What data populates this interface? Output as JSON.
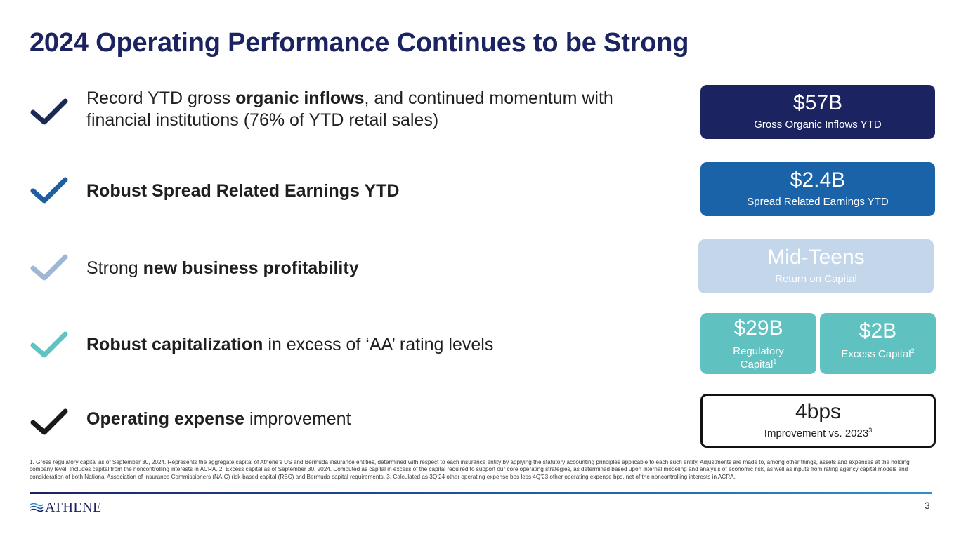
{
  "title": "2024 Operating Performance Continues to be Strong",
  "bullets": [
    {
      "pre": "Record YTD gross ",
      "bold": "organic inflows",
      "post": ", and continued momentum with financial institutions (76% of YTD retail sales)",
      "check_color": "#1b2a55"
    },
    {
      "pre": "",
      "bold": "Robust Spread Related Earnings YTD",
      "post": "",
      "check_color": "#1d5fa1"
    },
    {
      "pre": "Strong ",
      "bold": "new business profitability",
      "post": "",
      "check_color": "#9fb7d2"
    },
    {
      "pre": "",
      "bold": "Robust capitalization",
      "post": " in excess of ‘AA’ rating levels",
      "check_color": "#5ec3c2"
    },
    {
      "pre": "",
      "bold": "Operating expense",
      "post": " improvement",
      "check_color": "#1a1a1a"
    }
  ],
  "metrics": {
    "inflows": {
      "value": "$57B",
      "label": "Gross Organic Inflows YTD",
      "color": "#1b2360"
    },
    "spread": {
      "value": "$2.4B",
      "label": "Spread Related Earnings YTD",
      "color": "#1b63a8"
    },
    "return": {
      "value": "Mid-Teens",
      "label": "Return on Capital",
      "color": "#c3d6ea"
    },
    "regulatory": {
      "value": "$29B",
      "label": "Regulatory Capital",
      "sup": "1",
      "color": "#5fc2c1"
    },
    "excess": {
      "value": "$2B",
      "label": "Excess Capital",
      "sup": "2",
      "color": "#5fc2c1"
    },
    "expense": {
      "value": "4bps",
      "label": "Improvement vs. 2023",
      "sup": "3"
    }
  },
  "footnote": "1. Gross regulatory capital as of September 30, 2024. Represents the aggregate capital of Athene’s US and Bermuda insurance entities, determined with respect to each insurance entity by applying the statutory accounting principles applicable to each such entity. Adjustments are made to, among other things, assets and expenses at the holding company level. Includes capital from the noncontrolling interests in ACRA. 2. Excess capital as of September 30, 2024. Computed as capital in excess of the capital required to support our core operating strategies, as determined based upon internal modeling and analysis of economic risk, as well as inputs from rating agency capital models and consideration of both National Association of Insurance Commissioners (NAIC) risk-based capital (RBC) and Bermuda capital requirements. 3. Calculated as 3Q’24 other operating expense bps less 4Q’23 other operating expense bps, net of the noncontrolling interests in ACRA.",
  "logo_text": "ATHENE",
  "page_number": "3"
}
